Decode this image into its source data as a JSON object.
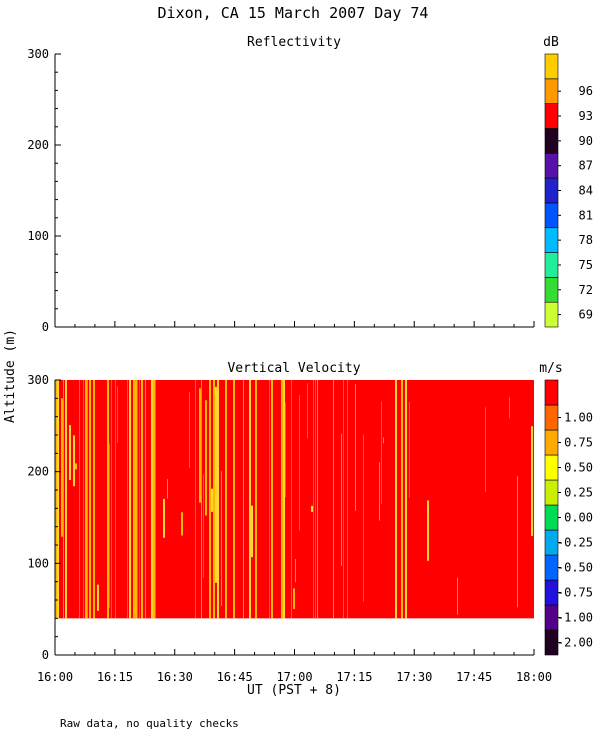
{
  "title": "Dixon, CA 15 March 2007  Day  74",
  "shared_ylabel": "Altitude (m)",
  "footnote": "Raw data, no quality checks",
  "chart_data": [
    {
      "type": "heatmap",
      "title": "Reflectivity",
      "ylim": [
        0,
        300
      ],
      "yticks": [
        "0",
        "100",
        "200",
        "300"
      ],
      "xlim_minutes_after_1600_UT": [
        0,
        120
      ],
      "colorbar": {
        "unit": "dB",
        "labels": [
          "69",
          "72",
          "75",
          "78",
          "81",
          "84",
          "87",
          "90",
          "93",
          "96"
        ],
        "colors": [
          "#ccff33",
          "#33dd33",
          "#22ee99",
          "#00bbff",
          "#0055ff",
          "#2222cc",
          "#5511aa",
          "#220022",
          "#ff0000",
          "#ff9900",
          "#ffcc00"
        ]
      },
      "data": []
    },
    {
      "type": "heatmap",
      "title": "Vertical Velocity",
      "ylim": [
        0,
        300
      ],
      "yticks": [
        "0",
        "100",
        "200",
        "300"
      ],
      "data_altitude_range_m": [
        40,
        300
      ],
      "background_value": 1.2,
      "colorbar": {
        "unit": "m/s",
        "labels": [
          "-2.00",
          "-1.00",
          "-0.75",
          "-0.50",
          "-0.25",
          "0.00",
          "0.25",
          "0.50",
          "0.75",
          "1.00"
        ],
        "colors": [
          "#220022",
          "#550088",
          "#2211dd",
          "#0066ff",
          "#00aaee",
          "#00dd55",
          "#ccee00",
          "#ffff00",
          "#ffaa00",
          "#ff6600",
          "#ff0000"
        ]
      },
      "streak_intensity_by_quarter_hour": [
        0.95,
        0.9,
        0.85,
        0.8,
        0.5,
        0.35,
        0.3,
        0.25
      ],
      "xlabel": "UT  (PST + 8)",
      "xticks": [
        "16:00",
        "16:15",
        "16:30",
        "16:45",
        "17:00",
        "17:15",
        "17:30",
        "17:45",
        "18:00"
      ]
    }
  ]
}
